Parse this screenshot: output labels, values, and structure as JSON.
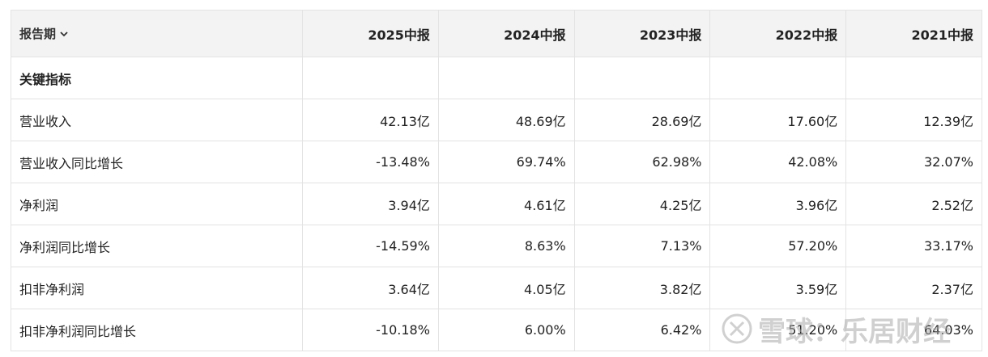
{
  "header": {
    "period_label": "报告期",
    "periods": [
      "2025中报",
      "2024中报",
      "2023中报",
      "2022中报",
      "2021中报"
    ]
  },
  "section": {
    "title": "关键指标"
  },
  "rows": [
    {
      "label": "营业收入",
      "values": [
        "42.13亿",
        "48.69亿",
        "28.69亿",
        "17.60亿",
        "12.39亿"
      ]
    },
    {
      "label": "营业收入同比增长",
      "values": [
        "-13.48%",
        "69.74%",
        "62.98%",
        "42.08%",
        "32.07%"
      ]
    },
    {
      "label": "净利润",
      "values": [
        "3.94亿",
        "4.61亿",
        "4.25亿",
        "3.96亿",
        "2.52亿"
      ]
    },
    {
      "label": "净利润同比增长",
      "values": [
        "-14.59%",
        "8.63%",
        "7.13%",
        "57.20%",
        "33.17%"
      ]
    },
    {
      "label": "扣非净利润",
      "values": [
        "3.64亿",
        "4.05亿",
        "3.82亿",
        "3.59亿",
        "2.37亿"
      ]
    },
    {
      "label": "扣非净利润同比增长",
      "values": [
        "-10.18%",
        "6.00%",
        "6.42%",
        "51.20%",
        "64.03%"
      ]
    }
  ],
  "watermark": {
    "text": "雪球：乐居财经",
    "icon": "snowball-logo-icon"
  }
}
